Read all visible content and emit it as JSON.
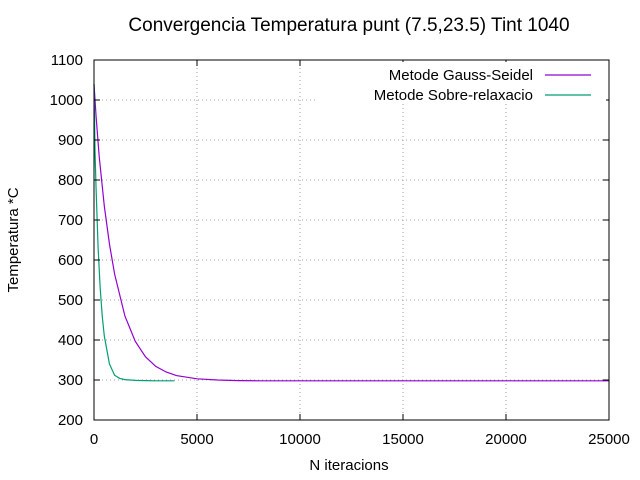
{
  "chart_data": {
    "type": "line",
    "title": "Convergencia Temperatura punt (7.5,23.5) Tint 1040",
    "xlabel": "N iteracions",
    "ylabel": "Temperatura *C",
    "xlim": [
      0,
      25000
    ],
    "ylim": [
      200,
      1100
    ],
    "xticks": [
      0,
      5000,
      10000,
      15000,
      20000,
      25000
    ],
    "yticks": [
      200,
      300,
      400,
      500,
      600,
      700,
      800,
      900,
      1000,
      1100
    ],
    "grid": true,
    "legend_position": "top-right",
    "series": [
      {
        "name": "Metode Gauss-Seidel",
        "color": "#9400d3",
        "x": [
          0,
          100,
          250,
          500,
          750,
          1000,
          1500,
          2000,
          2500,
          3000,
          3500,
          4000,
          5000,
          6000,
          7000,
          8000,
          10000,
          15000,
          20000,
          25000
        ],
        "y": [
          1040,
          960,
          860,
          735,
          640,
          565,
          460,
          397,
          358,
          334,
          320,
          311,
          303,
          300,
          298.5,
          298,
          298,
          298,
          298,
          298
        ]
      },
      {
        "name": "Metode Sobre-relaxacio",
        "color": "#009e73",
        "x": [
          0,
          50,
          100,
          200,
          300,
          400,
          500,
          750,
          1000,
          1250,
          1500,
          2000,
          2500,
          3000,
          3500,
          3900
        ],
        "y": [
          1040,
          870,
          780,
          630,
          530,
          460,
          410,
          340,
          312,
          304,
          301,
          299,
          298.5,
          298,
          298,
          298
        ]
      }
    ]
  }
}
